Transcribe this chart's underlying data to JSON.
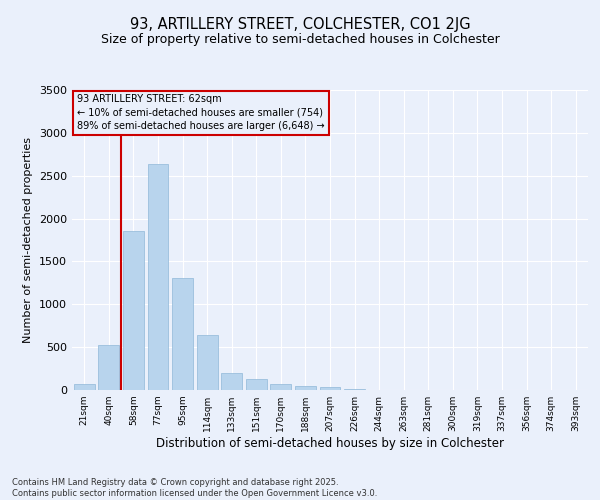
{
  "title": "93, ARTILLERY STREET, COLCHESTER, CO1 2JG",
  "subtitle": "Size of property relative to semi-detached houses in Colchester",
  "xlabel": "Distribution of semi-detached houses by size in Colchester",
  "ylabel": "Number of semi-detached properties",
  "categories": [
    "21sqm",
    "40sqm",
    "58sqm",
    "77sqm",
    "95sqm",
    "114sqm",
    "133sqm",
    "151sqm",
    "170sqm",
    "188sqm",
    "207sqm",
    "226sqm",
    "244sqm",
    "263sqm",
    "281sqm",
    "300sqm",
    "319sqm",
    "337sqm",
    "356sqm",
    "374sqm",
    "393sqm"
  ],
  "values": [
    65,
    530,
    1850,
    2640,
    1310,
    640,
    200,
    130,
    75,
    45,
    30,
    15,
    5,
    0,
    0,
    0,
    0,
    0,
    0,
    0,
    0
  ],
  "bar_color": "#b8d4ed",
  "bar_edge_color": "#90b8d8",
  "vline_x": 1.5,
  "vline_color": "#cc0000",
  "annotation_title": "93 ARTILLERY STREET: 62sqm",
  "annotation_line1": "← 10% of semi-detached houses are smaller (754)",
  "annotation_line2": "89% of semi-detached houses are larger (6,648) →",
  "annotation_box_edgecolor": "#cc0000",
  "ylim": [
    0,
    3500
  ],
  "yticks": [
    0,
    500,
    1000,
    1500,
    2000,
    2500,
    3000,
    3500
  ],
  "bg_color": "#eaf0fb",
  "grid_color": "#ffffff",
  "footnote1": "Contains HM Land Registry data © Crown copyright and database right 2025.",
  "footnote2": "Contains public sector information licensed under the Open Government Licence v3.0.",
  "title_fontsize": 10.5,
  "subtitle_fontsize": 9
}
